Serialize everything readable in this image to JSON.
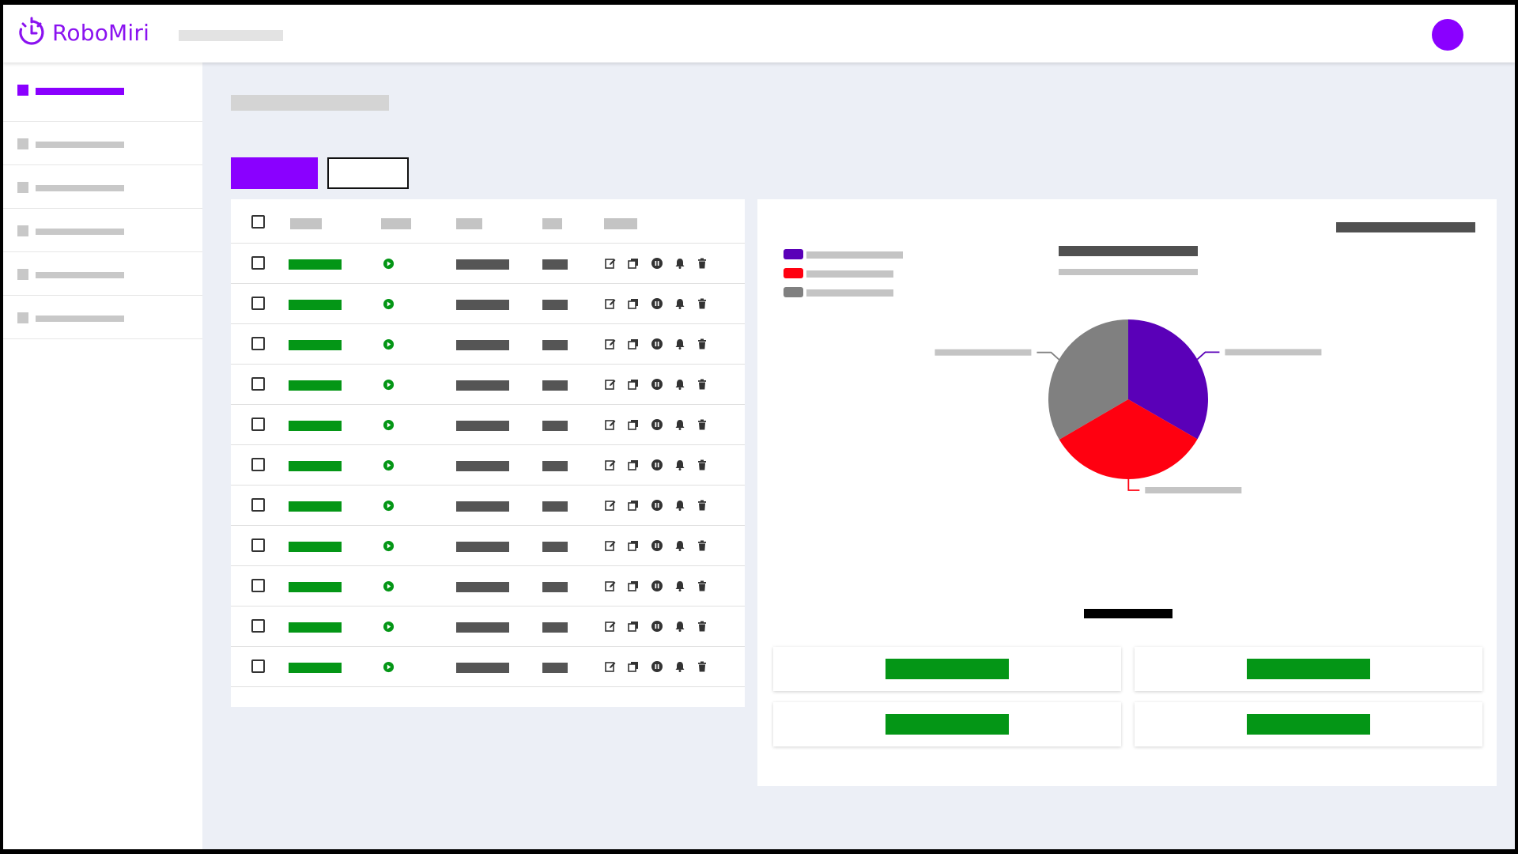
{
  "app": {
    "name": "RoboMiri",
    "brand_color": "#8a00ff",
    "logo_icon": "clock-logo-icon"
  },
  "colors": {
    "success": "#049616",
    "dark_placeholder": "#555555",
    "light_placeholder": "#c8c8c8"
  },
  "sidebar": {
    "items": [
      {
        "id": "nav-1",
        "active": true
      },
      {
        "id": "nav-2",
        "active": false
      },
      {
        "id": "nav-3",
        "active": false
      },
      {
        "id": "nav-4",
        "active": false
      },
      {
        "id": "nav-5",
        "active": false
      },
      {
        "id": "nav-6",
        "active": false
      }
    ]
  },
  "table": {
    "row_count": 11,
    "status_icon": "play-circle-icon",
    "action_icons": [
      "edit-icon",
      "copy-icon",
      "pause-circle-icon",
      "bell-icon",
      "trash-icon"
    ]
  },
  "chart_data": {
    "type": "pie",
    "values": [
      33.3,
      33.3,
      33.4
    ],
    "colors": [
      "#5a00b8",
      "#ff0010",
      "#808080"
    ],
    "legend_position": "top-left"
  },
  "stats": {
    "cards": 4,
    "value_color": "#049616"
  }
}
